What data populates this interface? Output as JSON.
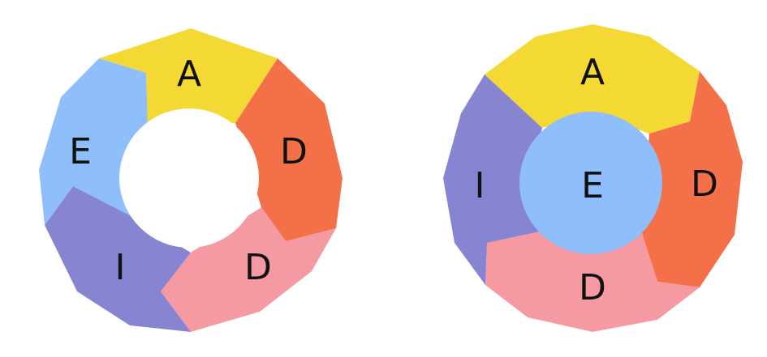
{
  "diagrams": [
    {
      "segments": [
        {
          "label": "A",
          "color": "#f4d935"
        },
        {
          "label": "D",
          "color": "#f47048"
        },
        {
          "label": "D",
          "color": "#f59aa2"
        },
        {
          "label": "I",
          "color": "#8784d1"
        },
        {
          "label": "E",
          "color": "#8fbefd"
        }
      ]
    },
    {
      "segments": [
        {
          "label": "A",
          "color": "#f4d935"
        },
        {
          "label": "D",
          "color": "#f47048"
        },
        {
          "label": "D",
          "color": "#f59aa2"
        },
        {
          "label": "I",
          "color": "#8784d1"
        }
      ],
      "center": {
        "label": "E",
        "color": "#8fbefd"
      }
    }
  ]
}
